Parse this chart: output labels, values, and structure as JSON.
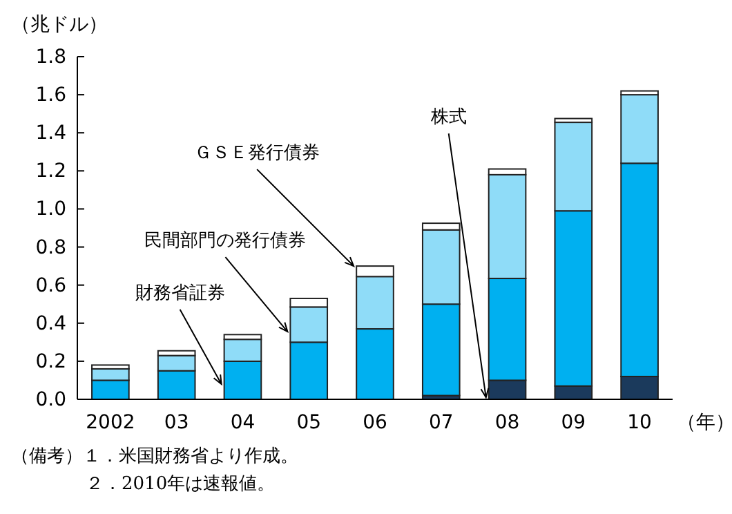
{
  "chart_data": {
    "type": "bar",
    "stacked": true,
    "ylabel": "（兆ドル）",
    "xlabel": "（年）",
    "categories": [
      "2002",
      "03",
      "04",
      "05",
      "06",
      "07",
      "08",
      "09",
      "10"
    ],
    "series": [
      {
        "name": "株式",
        "color": "#1b3a5c",
        "values": [
          0,
          0,
          0,
          0,
          0,
          0.02,
          0.1,
          0.07,
          0.12
        ]
      },
      {
        "name": "財務省証券",
        "color": "#00b0f0",
        "values": [
          0.1,
          0.15,
          0.2,
          0.3,
          0.37,
          0.48,
          0.535,
          0.92,
          1.12
        ]
      },
      {
        "name": "民間部門の発行債券",
        "color": "#8fdcf8",
        "values": [
          0.06,
          0.08,
          0.115,
          0.185,
          0.275,
          0.39,
          0.545,
          0.465,
          0.36
        ]
      },
      {
        "name": "ＧＳＥ発行債券",
        "color": "#ffffff",
        "values": [
          0.02,
          0.025,
          0.025,
          0.045,
          0.055,
          0.035,
          0.03,
          0.02,
          0.02
        ]
      }
    ],
    "ylim": [
      0,
      1.8
    ],
    "yticks": [
      {
        "value": 0,
        "label": "0.0"
      },
      0.2,
      0.4,
      0.6,
      0.8,
      {
        "value": 1,
        "label": "1.0"
      },
      1.2,
      1.4,
      1.6,
      1.8
    ],
    "grid": false,
    "annotations": [
      "（備考）１．米国財務省より作成。",
      "２．2010年は速報値。"
    ]
  }
}
